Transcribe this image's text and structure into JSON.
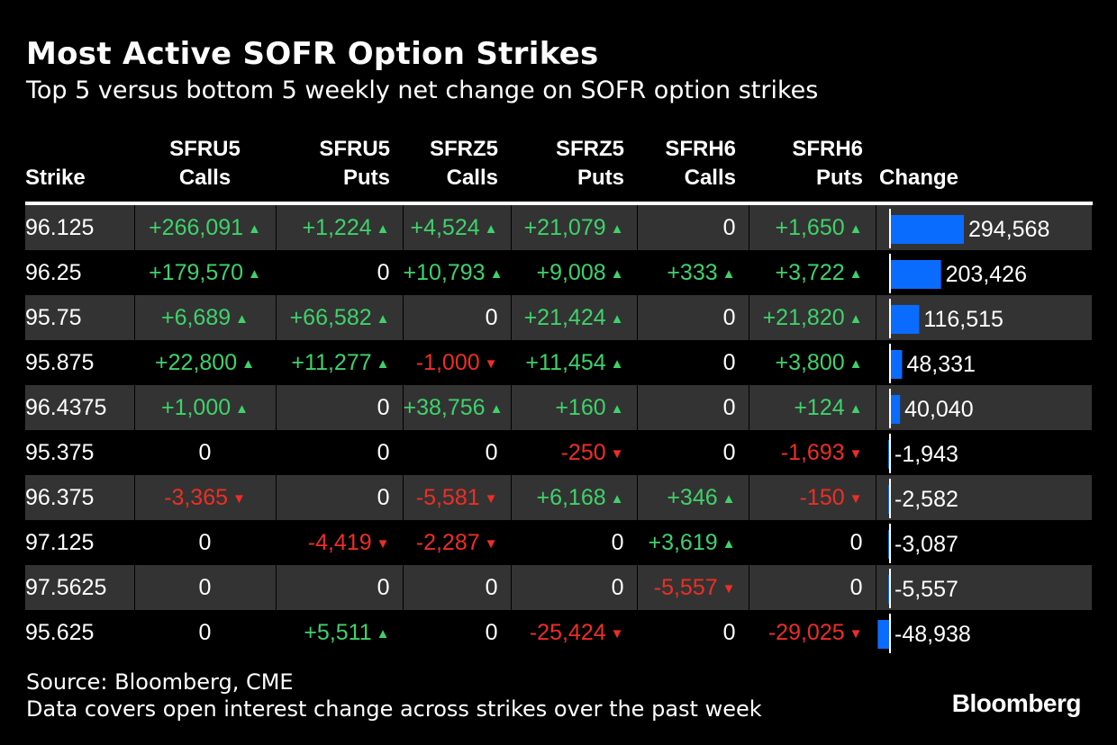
{
  "title": "Most Active SOFR Option Strikes",
  "subtitle": "Top 5 versus bottom 5 weekly net change on SOFR option strikes",
  "columns": {
    "strike": "Strike",
    "sfru5_calls": [
      "SFRU5",
      "Calls"
    ],
    "sfru5_puts": [
      "SFRU5",
      "Puts"
    ],
    "sfrz5_calls": [
      "SFRZ5",
      "Calls"
    ],
    "sfrz5_puts": [
      "SFRZ5",
      "Puts"
    ],
    "sfrh6_calls": [
      "SFRH6",
      "Calls"
    ],
    "sfrh6_puts": [
      "SFRH6",
      "Puts"
    ],
    "change": "Change"
  },
  "chart_data": {
    "type": "table",
    "bar_color": "#0a6cff",
    "positive_color": "#3fd26a",
    "negative_color": "#ee2e24",
    "rows": [
      {
        "strike": "96.125",
        "sfru5_calls": "+266,091",
        "sfru5_puts": "+1,224",
        "sfrz5_calls": "+4,524",
        "sfrz5_puts": "+21,079",
        "sfrh6_calls": "0",
        "sfrh6_puts": "+1,650",
        "change": 294568,
        "change_label": "294,568"
      },
      {
        "strike": "96.25",
        "sfru5_calls": "+179,570",
        "sfru5_puts": "0",
        "sfrz5_calls": "+10,793",
        "sfrz5_puts": "+9,008",
        "sfrh6_calls": "+333",
        "sfrh6_puts": "+3,722",
        "change": 203426,
        "change_label": "203,426"
      },
      {
        "strike": "95.75",
        "sfru5_calls": "+6,689",
        "sfru5_puts": "+66,582",
        "sfrz5_calls": "0",
        "sfrz5_puts": "+21,424",
        "sfrh6_calls": "0",
        "sfrh6_puts": "+21,820",
        "change": 116515,
        "change_label": "116,515"
      },
      {
        "strike": "95.875",
        "sfru5_calls": "+22,800",
        "sfru5_puts": "+11,277",
        "sfrz5_calls": "-1,000",
        "sfrz5_puts": "+11,454",
        "sfrh6_calls": "0",
        "sfrh6_puts": "+3,800",
        "change": 48331,
        "change_label": "48,331"
      },
      {
        "strike": "96.4375",
        "sfru5_calls": "+1,000",
        "sfru5_puts": "0",
        "sfrz5_calls": "+38,756",
        "sfrz5_puts": "+160",
        "sfrh6_calls": "0",
        "sfrh6_puts": "+124",
        "change": 40040,
        "change_label": "40,040"
      },
      {
        "strike": "95.375",
        "sfru5_calls": "0",
        "sfru5_puts": "0",
        "sfrz5_calls": "0",
        "sfrz5_puts": "-250",
        "sfrh6_calls": "0",
        "sfrh6_puts": "-1,693",
        "change": -1943,
        "change_label": "-1,943"
      },
      {
        "strike": "96.375",
        "sfru5_calls": "-3,365",
        "sfru5_puts": "0",
        "sfrz5_calls": "-5,581",
        "sfrz5_puts": "+6,168",
        "sfrh6_calls": "+346",
        "sfrh6_puts": "-150",
        "change": -2582,
        "change_label": "-2,582"
      },
      {
        "strike": "97.125",
        "sfru5_calls": "0",
        "sfru5_puts": "-4,419",
        "sfrz5_calls": "-2,287",
        "sfrz5_puts": "0",
        "sfrh6_calls": "+3,619",
        "sfrh6_puts": "0",
        "change": -3087,
        "change_label": "-3,087"
      },
      {
        "strike": "97.5625",
        "sfru5_calls": "0",
        "sfru5_puts": "0",
        "sfrz5_calls": "0",
        "sfrz5_puts": "0",
        "sfrh6_calls": "-5,557",
        "sfrh6_puts": "0",
        "change": -5557,
        "change_label": "-5,557"
      },
      {
        "strike": "95.625",
        "sfru5_calls": "0",
        "sfru5_puts": "+5,511",
        "sfrz5_calls": "0",
        "sfrz5_puts": "-25,424",
        "sfrh6_calls": "0",
        "sfrh6_puts": "-29,025",
        "change": -48938,
        "change_label": "-48,938"
      }
    ]
  },
  "footer": {
    "source": "Source: Bloomberg, CME",
    "note": "Data covers open interest change across strikes over the past week",
    "logo": "Bloomberg"
  }
}
